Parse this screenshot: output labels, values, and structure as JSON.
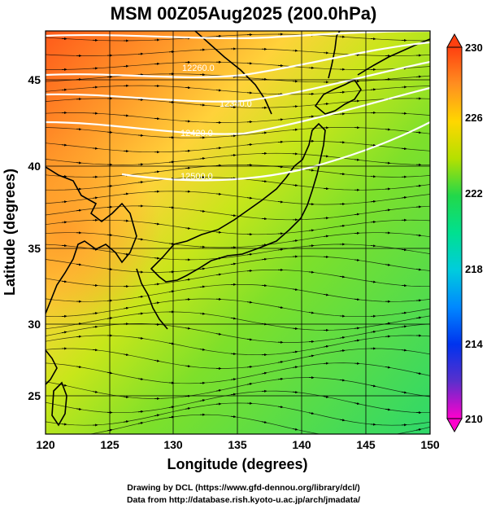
{
  "title": "MSM 00Z05Aug2025 (200.0hPa)",
  "x_axis": {
    "label": "Longitude (degrees)",
    "ticks": [
      "120",
      "125",
      "130",
      "135",
      "140",
      "145",
      "150"
    ],
    "range": [
      120,
      150
    ]
  },
  "y_axis": {
    "label": "Latitude  (degrees)",
    "ticks": [
      "25",
      "30",
      "35",
      "40",
      "45"
    ],
    "range": [
      22.5,
      47.6
    ]
  },
  "colorbar": {
    "ticks": [
      "230",
      "226",
      "222",
      "218",
      "214",
      "210"
    ],
    "range": [
      210,
      230
    ],
    "colors": [
      "#ff00cc",
      "#5a2fcc",
      "#0055ff",
      "#00aaff",
      "#00e6cc",
      "#00e070",
      "#2ecc3a",
      "#b5e000",
      "#ffd700",
      "#ff9f20",
      "#ff4f10"
    ]
  },
  "contour_labels": [
    "12260.0",
    "12340.0",
    "12420.0",
    "12500.0"
  ],
  "credits": {
    "line1": "Drawing by DCL (https://www.gfd-dennou.org/library/dcl/)",
    "line2": "Data from http://database.rish.kyoto-u.ac.jp/arch/jmadata/"
  }
}
